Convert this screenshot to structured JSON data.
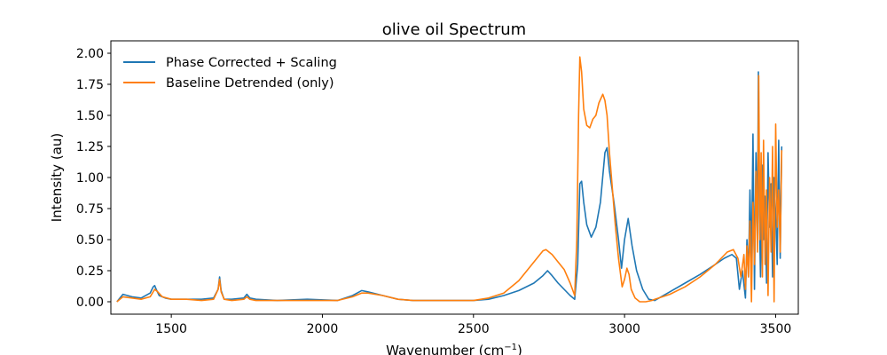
{
  "chart_data": {
    "type": "line",
    "title": "olive oil Spectrum",
    "xlabel": "Wavenumber (cm",
    "xlabel_sup": "−1",
    "xlabel_tail": ")",
    "ylabel": "Intensity (au)",
    "xlim": [
      1300,
      3575
    ],
    "ylim": [
      -0.1,
      2.1
    ],
    "xticks": [
      1500,
      2000,
      2500,
      3000,
      3500
    ],
    "xtick_labels": [
      "1500",
      "2000",
      "2500",
      "3000",
      "3500"
    ],
    "yticks": [
      0.0,
      0.25,
      0.5,
      0.75,
      1.0,
      1.25,
      1.5,
      1.75,
      2.0
    ],
    "ytick_labels": [
      "0.00",
      "0.25",
      "0.50",
      "0.75",
      "1.00",
      "1.25",
      "1.50",
      "1.75",
      "2.00"
    ],
    "grid": false,
    "legend_position": "top-left",
    "series": [
      {
        "name": "Phase Corrected + Scaling",
        "color": "#1f77b4",
        "x": [
          1320,
          1340,
          1370,
          1400,
          1430,
          1440,
          1445,
          1450,
          1460,
          1480,
          1500,
          1550,
          1600,
          1640,
          1655,
          1660,
          1665,
          1675,
          1700,
          1740,
          1750,
          1760,
          1780,
          1850,
          1950,
          2050,
          2100,
          2130,
          2150,
          2200,
          2250,
          2300,
          2400,
          2500,
          2550,
          2600,
          2650,
          2700,
          2730,
          2745,
          2760,
          2780,
          2800,
          2820,
          2835,
          2845,
          2852,
          2858,
          2865,
          2875,
          2890,
          2905,
          2920,
          2935,
          2942,
          2950,
          2965,
          2980,
          2990,
          3000,
          3012,
          3025,
          3040,
          3060,
          3080,
          3100,
          3150,
          3200,
          3250,
          3300,
          3330,
          3355,
          3370,
          3380,
          3390,
          3400,
          3405,
          3410,
          3415,
          3420,
          3425,
          3430,
          3435,
          3440,
          3443,
          3446,
          3450,
          3455,
          3460,
          3465,
          3470,
          3475,
          3480,
          3485,
          3490,
          3495,
          3500,
          3505,
          3510,
          3515,
          3520
        ],
        "y": [
          0.0,
          0.06,
          0.04,
          0.03,
          0.07,
          0.12,
          0.13,
          0.1,
          0.05,
          0.03,
          0.02,
          0.02,
          0.02,
          0.03,
          0.1,
          0.2,
          0.09,
          0.02,
          0.02,
          0.03,
          0.06,
          0.03,
          0.02,
          0.01,
          0.02,
          0.01,
          0.05,
          0.09,
          0.08,
          0.05,
          0.02,
          0.01,
          0.01,
          0.01,
          0.02,
          0.05,
          0.09,
          0.15,
          0.21,
          0.25,
          0.21,
          0.15,
          0.1,
          0.05,
          0.02,
          0.3,
          0.95,
          0.97,
          0.8,
          0.62,
          0.52,
          0.6,
          0.8,
          1.2,
          1.24,
          1.05,
          0.8,
          0.5,
          0.27,
          0.5,
          0.67,
          0.45,
          0.25,
          0.1,
          0.02,
          0.01,
          0.08,
          0.15,
          0.22,
          0.3,
          0.35,
          0.38,
          0.35,
          0.1,
          0.25,
          0.03,
          0.5,
          0.2,
          0.9,
          0.3,
          1.35,
          0.1,
          1.2,
          0.55,
          1.85,
          0.7,
          0.2,
          1.1,
          0.5,
          0.85,
          0.15,
          1.2,
          0.6,
          0.95,
          0.2,
          1.0,
          0.7,
          0.3,
          1.3,
          0.35,
          1.25
        ]
      },
      {
        "name": "Baseline Detrended (only)",
        "color": "#ff7f0e",
        "x": [
          1320,
          1340,
          1370,
          1400,
          1430,
          1445,
          1455,
          1470,
          1500,
          1550,
          1600,
          1640,
          1655,
          1660,
          1665,
          1675,
          1700,
          1740,
          1750,
          1760,
          1780,
          1850,
          1950,
          2050,
          2100,
          2130,
          2150,
          2200,
          2250,
          2300,
          2400,
          2500,
          2550,
          2600,
          2650,
          2700,
          2730,
          2740,
          2760,
          2780,
          2800,
          2820,
          2835,
          2842,
          2848,
          2852,
          2858,
          2865,
          2875,
          2885,
          2895,
          2905,
          2915,
          2928,
          2935,
          2942,
          2950,
          2960,
          2970,
          2980,
          2992,
          3000,
          3008,
          3015,
          3022,
          3035,
          3050,
          3070,
          3090,
          3100,
          3150,
          3200,
          3250,
          3300,
          3340,
          3360,
          3375,
          3385,
          3395,
          3400,
          3405,
          3410,
          3415,
          3420,
          3425,
          3430,
          3435,
          3440,
          3444,
          3448,
          3452,
          3456,
          3460,
          3465,
          3470,
          3475,
          3480,
          3485,
          3490,
          3495,
          3500,
          3505,
          3510,
          3515,
          3520
        ],
        "y": [
          0.0,
          0.04,
          0.03,
          0.02,
          0.04,
          0.1,
          0.08,
          0.04,
          0.02,
          0.02,
          0.01,
          0.02,
          0.1,
          0.18,
          0.08,
          0.02,
          0.01,
          0.02,
          0.04,
          0.02,
          0.01,
          0.01,
          0.01,
          0.01,
          0.04,
          0.07,
          0.07,
          0.05,
          0.02,
          0.01,
          0.01,
          0.01,
          0.03,
          0.07,
          0.17,
          0.32,
          0.41,
          0.42,
          0.38,
          0.32,
          0.26,
          0.15,
          0.05,
          0.5,
          1.5,
          1.97,
          1.85,
          1.55,
          1.42,
          1.4,
          1.47,
          1.5,
          1.6,
          1.67,
          1.62,
          1.5,
          1.2,
          0.9,
          0.6,
          0.35,
          0.12,
          0.18,
          0.27,
          0.22,
          0.1,
          0.03,
          0.0,
          0.0,
          0.01,
          0.02,
          0.06,
          0.12,
          0.2,
          0.3,
          0.4,
          0.42,
          0.35,
          0.2,
          0.38,
          0.1,
          0.45,
          0.2,
          0.65,
          0.0,
          0.8,
          0.3,
          1.05,
          0.4,
          1.82,
          0.5,
          1.2,
          0.2,
          1.3,
          0.3,
          0.9,
          0.05,
          1.0,
          0.4,
          1.25,
          0.0,
          1.43,
          0.6,
          0.9,
          0.4,
          1.22
        ]
      }
    ]
  }
}
